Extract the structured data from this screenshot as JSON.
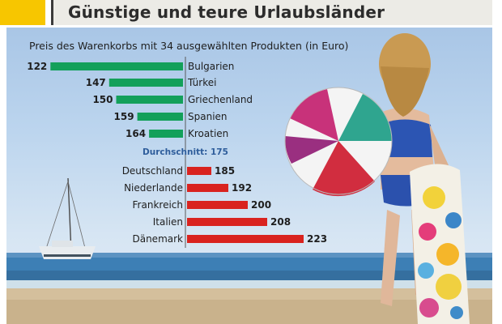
{
  "header": {
    "title": "Günstige und teure Urlaubsländer",
    "accent_color": "#f7c600"
  },
  "average": {
    "label": "Durchschnitt:",
    "value": "175"
  },
  "chart_data": {
    "type": "bar",
    "orientation": "horizontal",
    "title": "Preis des Warenkorbs mit 34 ausgewählten Produkten (in Euro)",
    "groups": [
      {
        "color": "#13a05a",
        "label_side": "right",
        "categories": [
          "Bulgarien",
          "Türkei",
          "Griechenland",
          "Spanien",
          "Kroatien"
        ],
        "values": [
          122,
          147,
          150,
          159,
          164
        ]
      },
      {
        "color": "#d9231f",
        "label_side": "left",
        "categories": [
          "Deutschland",
          "Niederlande",
          "Frankreich",
          "Italien",
          "Dänemark"
        ],
        "values": [
          185,
          192,
          200,
          208,
          223
        ]
      }
    ],
    "average": 175,
    "grid": false
  }
}
